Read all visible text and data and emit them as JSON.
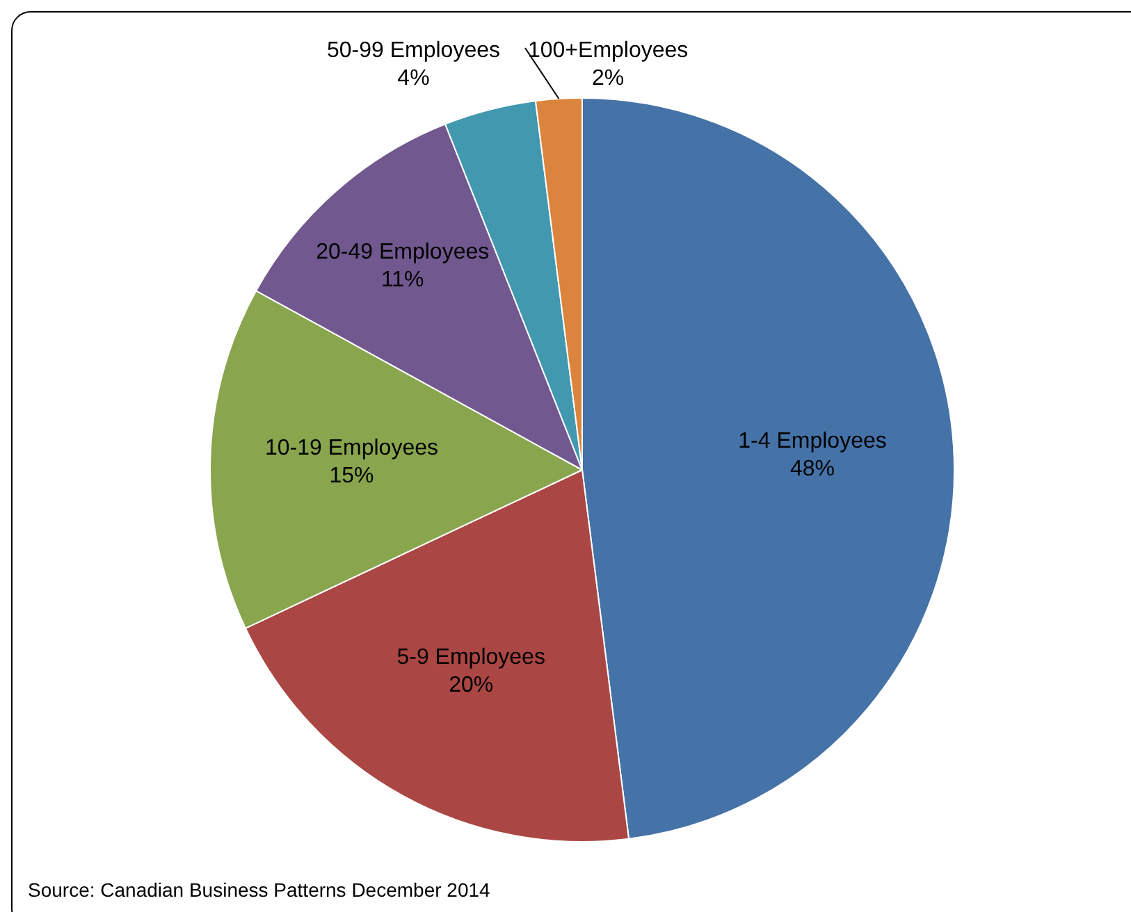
{
  "chart_data": {
    "type": "pie",
    "categories": [
      "1-4 Employees",
      "5-9 Employees",
      "10-19 Employees",
      "20-49 Employees",
      "50-99 Employees",
      "100+Employees"
    ],
    "values": [
      48,
      20,
      15,
      11,
      4,
      2
    ],
    "colors": [
      "#4572a7",
      "#aa4643",
      "#89a54e",
      "#71588f",
      "#4198af",
      "#db843d"
    ],
    "value_labels": [
      "48%",
      "20%",
      "15%",
      "11%",
      "4%",
      "2%"
    ],
    "legend": false,
    "annotations": [
      "Source: Canadian Business Patterns December 2014"
    ]
  }
}
